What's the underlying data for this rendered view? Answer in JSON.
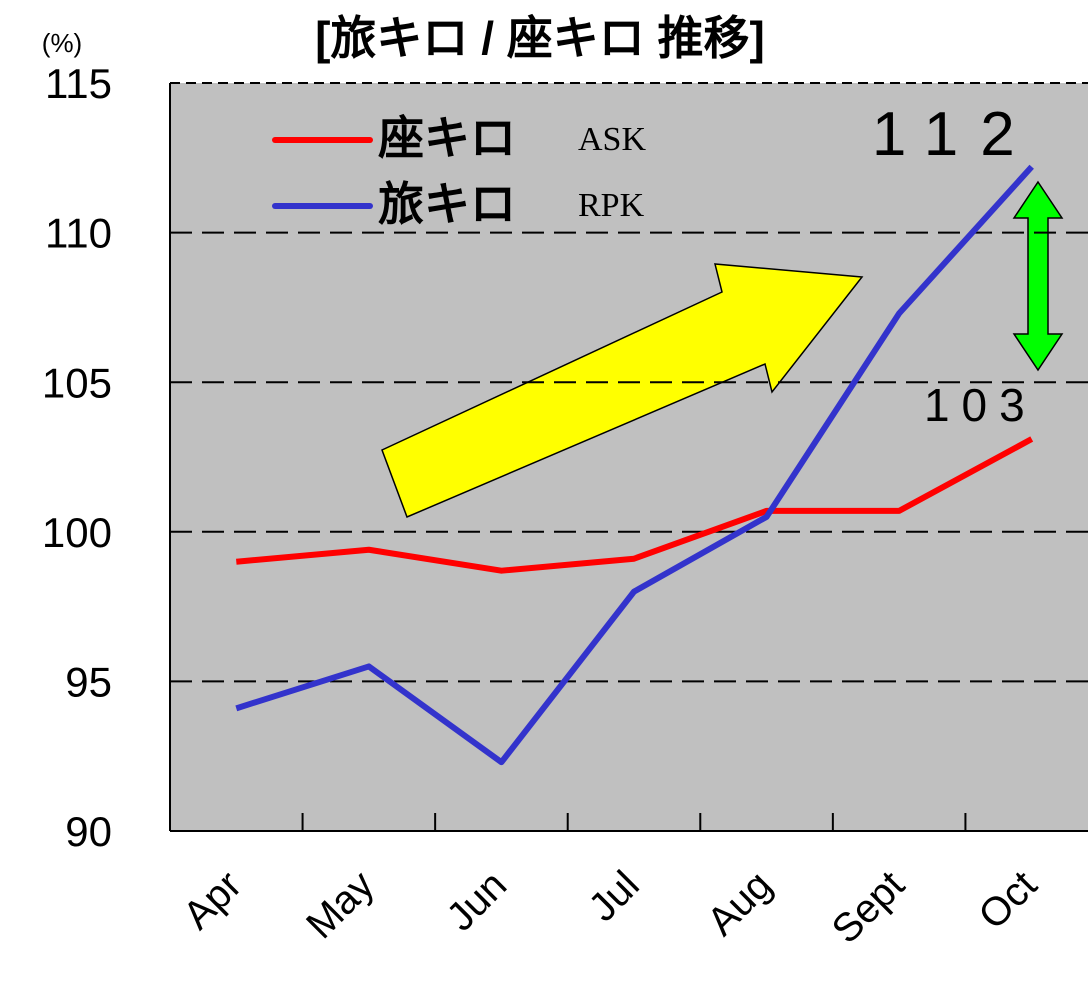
{
  "chart_data": {
    "type": "line",
    "title": "[旅キロ / 座キロ 推移]",
    "y_unit": "(%)",
    "categories": [
      "Apr",
      "May",
      "Jun",
      "Jul",
      "Aug",
      "Sept",
      "Oct"
    ],
    "series": [
      {
        "name": "座キロ",
        "code": "ASK",
        "color": "#ff0000",
        "values": [
          99.0,
          99.4,
          98.7,
          99.1,
          100.7,
          100.7,
          103.1
        ],
        "value_labels": [
          null,
          null,
          null,
          null,
          null,
          null,
          "103"
        ]
      },
      {
        "name": "旅キロ",
        "code": "RPK",
        "color": "#3333cc",
        "values": [
          94.1,
          95.5,
          92.3,
          98.0,
          100.5,
          107.3,
          112.2
        ],
        "value_labels": [
          null,
          null,
          null,
          null,
          null,
          null,
          "112"
        ]
      }
    ],
    "ylim": [
      90,
      115
    ],
    "yticks": [
      90,
      95,
      100,
      105,
      110,
      115
    ],
    "grid": true
  }
}
